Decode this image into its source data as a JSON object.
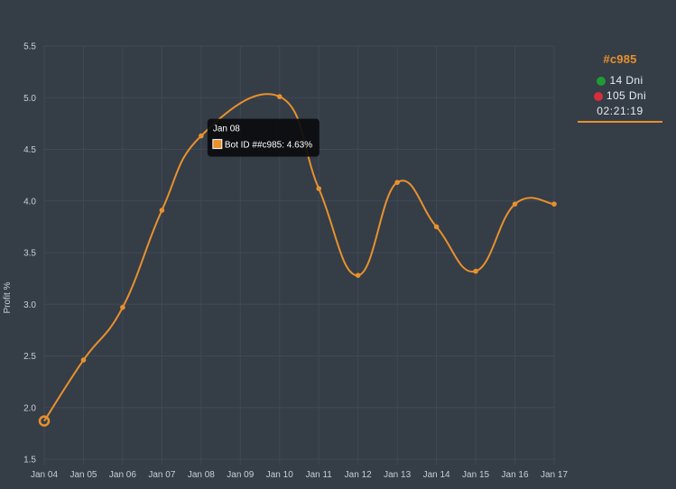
{
  "colors": {
    "background": "#353d47",
    "grid": "#404955",
    "axis_text": "#c8ced6",
    "line": "#e8912d",
    "tooltip_bg": "#0b0c0e",
    "up": "#1e9b36",
    "down": "#d72d3c"
  },
  "panel": {
    "bot_id": "#c985",
    "up_label": "14 Dni",
    "down_label": "105 Dni",
    "timer": "02:21:19",
    "up_icon": "green-circle-icon",
    "down_icon": "red-circle-icon"
  },
  "tooltip": {
    "title": "Jan 08",
    "label": "Bot ID ##c985: 4.63%"
  },
  "chart_data": {
    "type": "line",
    "categories": [
      "Jan 04",
      "Jan 05",
      "Jan 06",
      "Jan 07",
      "Jan 08",
      "Jan 09",
      "Jan 10",
      "Jan 11",
      "Jan 12",
      "Jan 13",
      "Jan 14",
      "Jan 15",
      "Jan 16",
      "Jan 17"
    ],
    "series": [
      {
        "values": [
          1.87,
          2.46,
          2.97,
          3.91,
          4.63,
          null,
          5.01,
          4.12,
          3.28,
          4.18,
          3.75,
          3.32,
          3.97,
          3.97
        ]
      }
    ],
    "ylabel": "Profit %",
    "ylim": [
      1.5,
      5.5
    ],
    "yticks": [
      "1.5",
      "2.0",
      "2.5",
      "3.0",
      "3.5",
      "4.0",
      "4.5",
      "5.0",
      "5.5"
    ],
    "grid": true,
    "smooth": true,
    "highlight_index": 0,
    "tooltip_index": 4
  }
}
